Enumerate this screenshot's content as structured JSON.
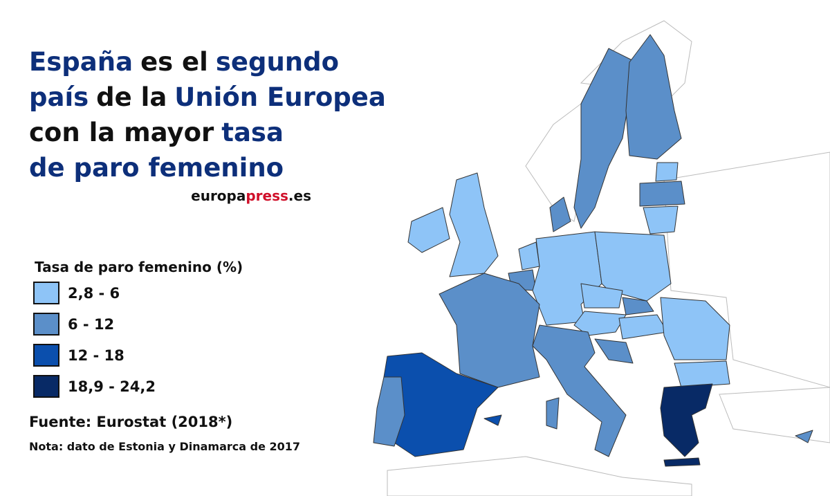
{
  "title": {
    "lines": [
      [
        {
          "text": "España",
          "color": "#0d2f7a"
        },
        {
          "text": "es el",
          "color": "#111111"
        },
        {
          "text": "segundo",
          "color": "#0d2f7a"
        }
      ],
      [
        {
          "text": "país",
          "color": "#0d2f7a"
        },
        {
          "text": "de la",
          "color": "#111111"
        },
        {
          "text": "Unión Europea",
          "color": "#0d2f7a"
        }
      ],
      [
        {
          "text": "con la mayor",
          "color": "#111111"
        },
        {
          "text": "tasa",
          "color": "#0d2f7a"
        }
      ],
      [
        {
          "text": "de paro femenino",
          "color": "#0d2f7a"
        }
      ]
    ]
  },
  "brand": [
    {
      "text": "europa",
      "color": "#111111"
    },
    {
      "text": "press",
      "color": "#d0102a"
    },
    {
      "text": ".es",
      "color": "#111111"
    }
  ],
  "legend": {
    "title": "Tasa de paro femenino (%)",
    "items": [
      {
        "label": "2,8 - 6",
        "color": "#8ec4f7"
      },
      {
        "label": "6 - 12",
        "color": "#5b8fc9"
      },
      {
        "label": "12 - 18",
        "color": "#0b4fad"
      },
      {
        "label": "18,9 - 24,2",
        "color": "#082a66"
      }
    ]
  },
  "source": "Fuente: Eurostat (2018*)",
  "note": "Nota: dato de Estonia y Dinamarca de 2017"
}
